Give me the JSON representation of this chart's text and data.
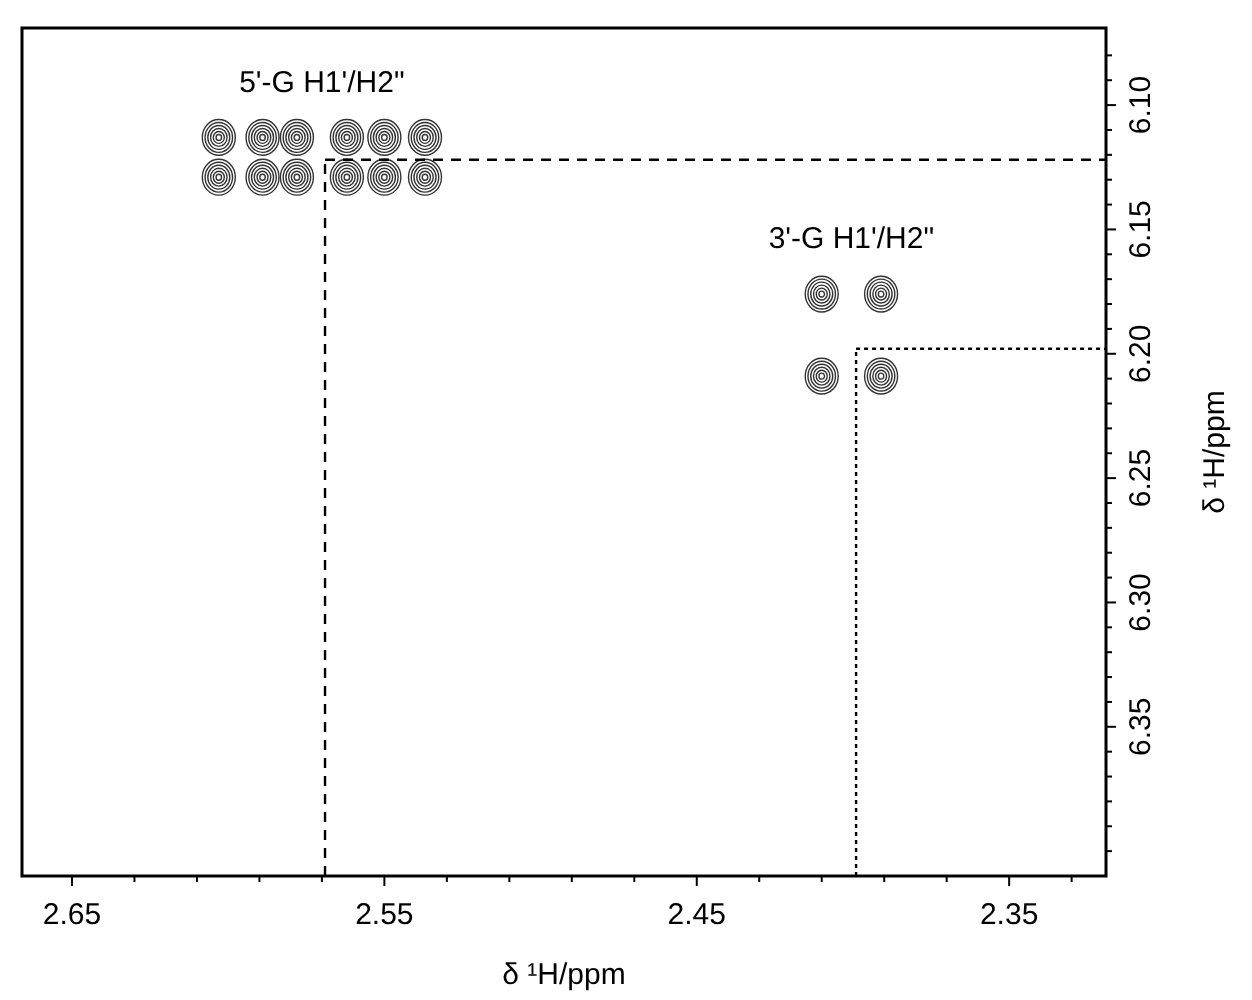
{
  "chart_data": {
    "type": "scatter",
    "xlabel": "δ ¹H/ppm",
    "ylabel": "δ ¹H/ppm",
    "xlim": [
      2.666,
      2.319
    ],
    "ylim": [
      6.41,
      6.069
    ],
    "xticks": [
      {
        "value": 2.65,
        "label": "2.65"
      },
      {
        "value": 2.63,
        "label": null
      },
      {
        "value": 2.61,
        "label": null
      },
      {
        "value": 2.59,
        "label": null
      },
      {
        "value": 2.57,
        "label": null
      },
      {
        "value": 2.55,
        "label": "2.55"
      },
      {
        "value": 2.53,
        "label": null
      },
      {
        "value": 2.51,
        "label": null
      },
      {
        "value": 2.49,
        "label": null
      },
      {
        "value": 2.47,
        "label": null
      },
      {
        "value": 2.45,
        "label": "2.45"
      },
      {
        "value": 2.43,
        "label": null
      },
      {
        "value": 2.41,
        "label": null
      },
      {
        "value": 2.39,
        "label": null
      },
      {
        "value": 2.37,
        "label": null
      },
      {
        "value": 2.35,
        "label": "2.35"
      },
      {
        "value": 2.33,
        "label": null
      }
    ],
    "yticks": [
      {
        "value": 6.08,
        "label": null
      },
      {
        "value": 6.09,
        "label": null
      },
      {
        "value": 6.1,
        "label": "6.10"
      },
      {
        "value": 6.11,
        "label": null
      },
      {
        "value": 6.12,
        "label": null
      },
      {
        "value": 6.13,
        "label": null
      },
      {
        "value": 6.14,
        "label": null
      },
      {
        "value": 6.15,
        "label": "6.15"
      },
      {
        "value": 6.16,
        "label": null
      },
      {
        "value": 6.17,
        "label": null
      },
      {
        "value": 6.18,
        "label": null
      },
      {
        "value": 6.19,
        "label": null
      },
      {
        "value": 6.2,
        "label": "6.20"
      },
      {
        "value": 6.21,
        "label": null
      },
      {
        "value": 6.22,
        "label": null
      },
      {
        "value": 6.23,
        "label": null
      },
      {
        "value": 6.24,
        "label": null
      },
      {
        "value": 6.25,
        "label": "6.25"
      },
      {
        "value": 6.26,
        "label": null
      },
      {
        "value": 6.27,
        "label": null
      },
      {
        "value": 6.28,
        "label": null
      },
      {
        "value": 6.29,
        "label": null
      },
      {
        "value": 6.3,
        "label": "6.30"
      },
      {
        "value": 6.31,
        "label": null
      },
      {
        "value": 6.32,
        "label": null
      },
      {
        "value": 6.33,
        "label": null
      },
      {
        "value": 6.34,
        "label": null
      },
      {
        "value": 6.35,
        "label": "6.35"
      },
      {
        "value": 6.36,
        "label": null
      },
      {
        "value": 6.37,
        "label": null
      },
      {
        "value": 6.38,
        "label": null
      },
      {
        "value": 6.39,
        "label": null
      },
      {
        "value": 6.4,
        "label": null
      }
    ],
    "series": [
      {
        "color": "#333333",
        "x": [
          2.603,
          2.589,
          2.578,
          2.562,
          2.55,
          2.537,
          2.603,
          2.589,
          2.578,
          2.562,
          2.55,
          2.537
        ],
        "values": [
          6.113,
          6.113,
          6.113,
          6.113,
          6.113,
          6.113,
          6.129,
          6.129,
          6.129,
          6.129,
          6.129,
          6.129
        ]
      },
      {
        "color": "#333333",
        "x": [
          2.41,
          2.391,
          2.41,
          2.391
        ],
        "values": [
          6.176,
          6.176,
          6.209,
          6.209
        ]
      }
    ],
    "ref_lines": [
      {
        "axis": "x",
        "value": 2.569,
        "line_style": "dashed"
      },
      {
        "axis": "y",
        "value": 6.122,
        "line_style": "dashed"
      },
      {
        "axis": "x",
        "value": 2.399,
        "line_style": "dotted"
      },
      {
        "axis": "y",
        "value": 6.198,
        "line_style": "dotted"
      }
    ],
    "annotations": [
      "5'-G H1'/H2\"",
      "3'-G H1'/H2\""
    ],
    "grid": false
  }
}
